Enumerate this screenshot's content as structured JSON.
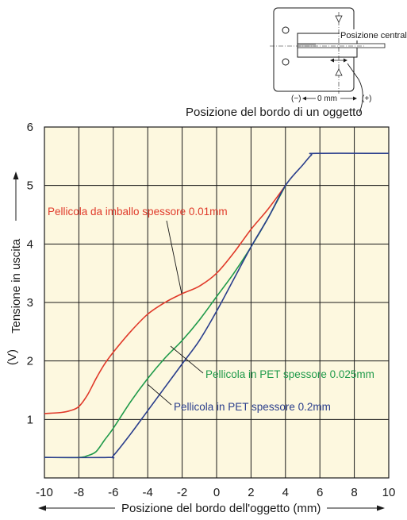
{
  "chart_data": {
    "type": "line",
    "xlabel": "Posizione del bordo dell'oggetto (mm)",
    "ylabel": "Tensione in uscita",
    "yunit": "(V)",
    "xlim": [
      -10,
      10
    ],
    "ylim": [
      0,
      6
    ],
    "xticks": [
      -10,
      -8,
      -6,
      -4,
      -2,
      0,
      2,
      4,
      6,
      8,
      10
    ],
    "yticks": [
      1,
      2,
      3,
      4,
      5,
      6
    ],
    "grid": true,
    "background": "#fdf8df",
    "series": [
      {
        "name": "Pellicola da imballo spessore 0.01mm",
        "color": "#e03a2a",
        "x": [
          -10,
          -9,
          -8.5,
          -8,
          -7.5,
          -7,
          -6.5,
          -6,
          -5,
          -4,
          -3,
          -2,
          -1,
          0,
          1,
          2,
          3,
          4
        ],
        "y": [
          1.1,
          1.12,
          1.15,
          1.22,
          1.42,
          1.7,
          1.95,
          2.15,
          2.5,
          2.8,
          3.0,
          3.15,
          3.28,
          3.5,
          3.85,
          4.25,
          4.6,
          5.0
        ]
      },
      {
        "name": "Pellicola in PET spessore 0.025mm",
        "color": "#1f9a4a",
        "x": [
          -10,
          -8,
          -7.5,
          -7,
          -6.5,
          -6,
          -5,
          -4,
          -3,
          -2,
          -1,
          0,
          1,
          2,
          3,
          4
        ],
        "y": [
          0.35,
          0.35,
          0.38,
          0.45,
          0.65,
          0.85,
          1.3,
          1.7,
          2.05,
          2.35,
          2.7,
          3.1,
          3.5,
          3.95,
          4.45,
          5.0
        ]
      },
      {
        "name": "Pellicola in PET spessore 0.2mm",
        "color": "#2a3e8c",
        "x": [
          -10,
          -6.3,
          -6,
          -5,
          -4,
          -3,
          -2,
          -1,
          0,
          1,
          2,
          3,
          4,
          5,
          5.5,
          5.8,
          10
        ],
        "y": [
          0.35,
          0.35,
          0.38,
          0.75,
          1.15,
          1.55,
          1.95,
          2.35,
          2.85,
          3.4,
          3.95,
          4.45,
          5.0,
          5.35,
          5.52,
          5.55,
          5.55
        ]
      }
    ],
    "annotations": {
      "diagram_label": "Posizione del bordo di un oggetto",
      "diagram_center": "Posizione centrale",
      "diagram_scale_neg": "(−)",
      "diagram_scale_zero": "0 mm",
      "diagram_scale_pos": "(+)"
    }
  }
}
